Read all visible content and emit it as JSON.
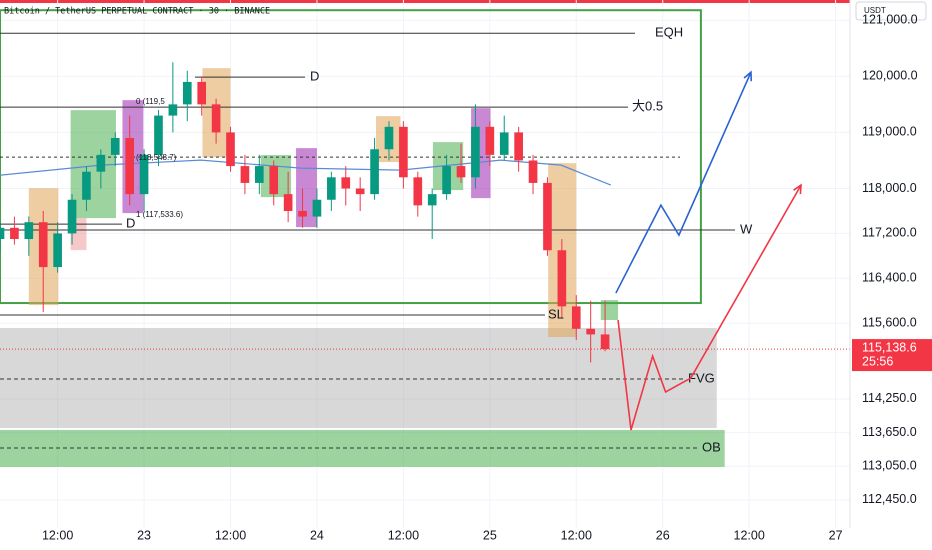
{
  "chart_data": {
    "type": "candlestick",
    "title": "Bitcoin / TetherUS PERPETUAL CONTRACT · 30 · BINANCE",
    "currency": "USDT",
    "x": [
      4,
      6,
      8,
      10,
      12,
      14,
      16,
      18,
      20,
      22,
      24,
      26,
      28,
      30,
      32,
      34,
      36,
      38,
      40,
      42,
      44,
      46,
      48,
      50,
      52,
      54,
      56,
      58,
      60,
      62,
      64,
      66,
      68,
      70,
      72,
      74,
      76,
      78,
      80,
      82,
      84,
      86,
      88
    ],
    "open": [
      117100,
      117300,
      117100,
      117400,
      116600,
      117200,
      117800,
      118300,
      118600,
      118900,
      117900,
      118600,
      119300,
      119500,
      119900,
      119500,
      119000,
      118400,
      118100,
      118400,
      117900,
      117600,
      117500,
      117800,
      118200,
      118000,
      117900,
      118700,
      119100,
      118200,
      117700,
      117900,
      118400,
      118200,
      119100,
      118600,
      119000,
      118500,
      118100,
      116900,
      115900,
      115500,
      115400
    ],
    "high": [
      117400,
      117500,
      117500,
      117600,
      117400,
      117900,
      118400,
      118700,
      119000,
      119300,
      118700,
      119400,
      120250,
      120100,
      120000,
      119600,
      119100,
      118600,
      118600,
      118500,
      118300,
      118000,
      118000,
      118300,
      118400,
      118200,
      118900,
      119200,
      119200,
      118300,
      118000,
      118600,
      118800,
      119500,
      119200,
      119300,
      119100,
      118600,
      118200,
      117100,
      116100,
      116000,
      116000
    ],
    "low": [
      116900,
      117000,
      116800,
      115800,
      116500,
      117000,
      117600,
      118000,
      118400,
      117700,
      117600,
      118400,
      119000,
      119200,
      119300,
      118800,
      118300,
      117900,
      117900,
      117700,
      117400,
      117300,
      117300,
      117600,
      117700,
      117600,
      117800,
      118500,
      118000,
      117500,
      117100,
      117800,
      118100,
      118000,
      118400,
      118500,
      118300,
      117900,
      116800,
      115700,
      115300,
      114900,
      115100
    ],
    "close": [
      117300,
      117100,
      117400,
      116600,
      117200,
      117800,
      118300,
      118600,
      118900,
      117900,
      118600,
      119300,
      119500,
      119900,
      119500,
      119000,
      118400,
      118100,
      118400,
      117900,
      117600,
      117500,
      117800,
      118200,
      118000,
      117900,
      118700,
      119100,
      118200,
      117700,
      117900,
      118400,
      118200,
      119100,
      118600,
      119000,
      118500,
      118100,
      116900,
      115900,
      115500,
      115400,
      115138.6
    ],
    "up_color": "#089981",
    "down_color": "#f23645",
    "last_label": "115,138.6",
    "countdown": "25:56",
    "xlim": [
      4,
      122
    ],
    "ylim": [
      111950,
      121360
    ],
    "xticks": [
      {
        "value": 12,
        "label": "12:00"
      },
      {
        "value": 24,
        "label": "23"
      },
      {
        "value": 36,
        "label": "12:00"
      },
      {
        "value": 48,
        "label": "24"
      },
      {
        "value": 60,
        "label": "12:00"
      },
      {
        "value": 72,
        "label": "25"
      },
      {
        "value": 84,
        "label": "12:00"
      },
      {
        "value": 96,
        "label": "26"
      },
      {
        "value": 108,
        "label": "12:00"
      },
      {
        "value": 120,
        "label": "27"
      }
    ],
    "yticks": [
      {
        "value": 121000,
        "label": "121,000.0"
      },
      {
        "value": 120000,
        "label": "120,000.0"
      },
      {
        "value": 119000,
        "label": "119,000.0"
      },
      {
        "value": 118000,
        "label": "118,000.0"
      },
      {
        "value": 117200,
        "label": "117,200.0"
      },
      {
        "value": 116400,
        "label": "116,400.0"
      },
      {
        "value": 115600,
        "label": "115,600.0"
      },
      {
        "value": 114250,
        "label": "114,250.0"
      },
      {
        "value": 113650,
        "label": "113,650.0"
      },
      {
        "value": 113050,
        "label": "113,050.0"
      },
      {
        "value": 112450,
        "label": "112,450.0"
      }
    ],
    "levels": [
      {
        "label": "EQH",
        "price": 120768
      },
      {
        "label": "D",
        "price": 119985
      },
      {
        "label": "大0.5",
        "price": 119450
      },
      {
        "label": "D",
        "price": 117366
      },
      {
        "label": "W",
        "price": 117260
      },
      {
        "label": "SL",
        "price": 115745
      },
      {
        "label": "FVG",
        "price": 114605
      },
      {
        "label": "OB",
        "price": 113376
      }
    ],
    "dashed_level": 118560,
    "fib_labels": [
      {
        "label": "0 (119,5",
        "price": 119540
      },
      {
        "label": "(118,548.7)",
        "price": 118548.7
      },
      {
        "label": "1 (117,533.6)",
        "price": 117533.6
      }
    ],
    "zones": [
      {
        "x": [
          4,
          101.3
        ],
        "y": [
          115959,
          121178
        ],
        "color": "#43a047"
      },
      {
        "x": [
          4,
          103.5
        ],
        "y": [
          113732,
          115514
        ],
        "color": "#9e9e9e"
      },
      {
        "x": [
          4,
          104.6
        ],
        "y": [
          113038,
          113697
        ],
        "color": "#4caf50"
      }
    ],
    "boxes": [
      {
        "x": [
          8.0,
          12.1
        ],
        "y": [
          115923,
          118007
        ],
        "color": "#e0a458"
      },
      {
        "x": [
          13.8,
          20.1
        ],
        "y": [
          117473,
          119397
        ],
        "color": "#4caf50"
      },
      {
        "x": [
          13.8,
          16.0
        ],
        "y": [
          116903,
          117473
        ],
        "color": "#ef9a9a"
      },
      {
        "x": [
          21.0,
          23.9
        ],
        "y": [
          117562,
          119575
        ],
        "color": "#9c27b0"
      },
      {
        "x": [
          32.1,
          36.0
        ],
        "y": [
          118560,
          120145
        ],
        "color": "#e0a458"
      },
      {
        "x": [
          40.2,
          44.4
        ],
        "y": [
          117847,
          118596
        ],
        "color": "#4caf50"
      },
      {
        "x": [
          45.1,
          48.0
        ],
        "y": [
          117312,
          118720
        ],
        "color": "#9c27b0"
      },
      {
        "x": [
          56.2,
          59.6
        ],
        "y": [
          118471,
          119290
        ],
        "color": "#e0a458"
      },
      {
        "x": [
          64.1,
          68.3
        ],
        "y": [
          117972,
          118827
        ],
        "color": "#4caf50"
      },
      {
        "x": [
          69.4,
          72.1
        ],
        "y": [
          117829,
          119432
        ],
        "color": "#9c27b0"
      },
      {
        "x": [
          80.1,
          84.0
        ],
        "y": [
          115353,
          118452
        ],
        "color": "#e0a458"
      },
      {
        "x": [
          87.4,
          89.8
        ],
        "y": [
          115656,
          116012
        ],
        "color": "#4caf50"
      }
    ],
    "moving_average": {
      "x": [
        4.1,
        18,
        31.9,
        45.75,
        59.6,
        73.5,
        81.9,
        88.8
      ],
      "values": [
        118239,
        118417,
        118506,
        118364,
        118328,
        118506,
        118417,
        118061
      ],
      "color": "#5b8bd6"
    },
    "paths": [
      {
        "x": [
          89.5,
          95.75,
          98.25,
          108.25
        ],
        "values": [
          116137,
          117704,
          117170,
          120073
        ],
        "color": "#2962d4"
      },
      {
        "x": [
          89.8,
          91.6,
          94.6,
          96.4,
          99.9,
          115.2
        ],
        "values": [
          115656,
          113697,
          115015,
          114374,
          114623,
          118061
        ],
        "color": "#f23645"
      }
    ]
  }
}
